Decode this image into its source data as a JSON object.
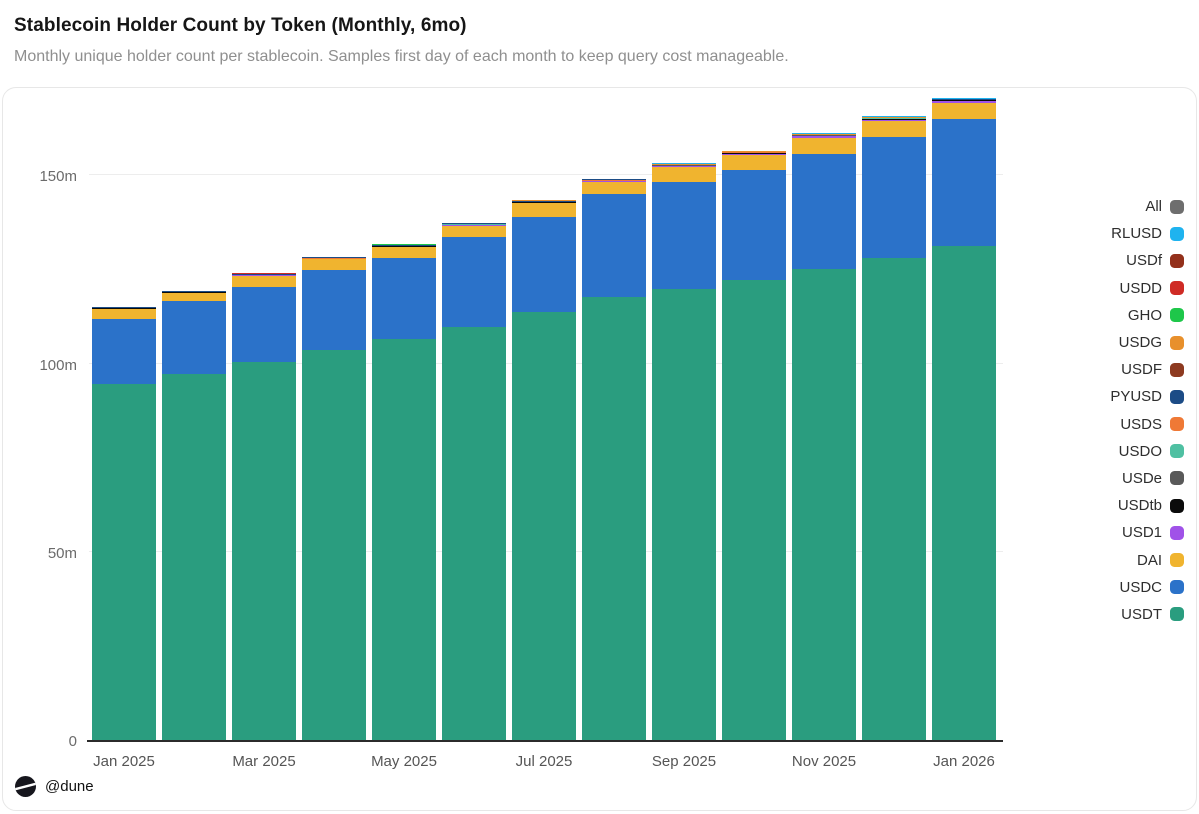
{
  "header": {
    "title": "Stablecoin Holder Count by Token (Monthly, 6mo)",
    "subtitle": "Monthly unique holder count per stablecoin. Samples first day of each month to keep query cost manageable."
  },
  "footer": {
    "watermark": "@dune"
  },
  "colors": {
    "card_border": "#e7e7e7",
    "grid": "#ededed",
    "axis": "#2b2b2b",
    "y_tick_label": "#6b6b6b",
    "x_tick_label": "#555555",
    "title": "#161616",
    "subtitle": "#8f8f8f"
  },
  "legend": {
    "position": "right",
    "items": [
      {
        "label": "All",
        "color": "#6e6e6e"
      },
      {
        "label": "RLUSD",
        "color": "#1fb3ef"
      },
      {
        "label": "USDf",
        "color": "#93301b"
      },
      {
        "label": "USDD",
        "color": "#cf2b25"
      },
      {
        "label": "GHO",
        "color": "#1ec74a"
      },
      {
        "label": "USDG",
        "color": "#e8902c"
      },
      {
        "label": "USDF",
        "color": "#8d3a20"
      },
      {
        "label": "PYUSD",
        "color": "#1c4c86"
      },
      {
        "label": "USDS",
        "color": "#ef7936"
      },
      {
        "label": "USDO",
        "color": "#4fc0a2"
      },
      {
        "label": "USDe",
        "color": "#595959"
      },
      {
        "label": "USDtb",
        "color": "#0b0b0b"
      },
      {
        "label": "USD1",
        "color": "#a052e8"
      },
      {
        "label": "DAI",
        "color": "#f0b42f"
      },
      {
        "label": "USDC",
        "color": "#2b72c9"
      },
      {
        "label": "USDT",
        "color": "#2a9d7f"
      }
    ]
  },
  "chart_data": {
    "type": "bar",
    "stacked": true,
    "title": "Stablecoin Holder Count by Token (Monthly, 6mo)",
    "unit": "millions of holders",
    "categories": [
      "Jan 2025",
      "Feb 2025",
      "Mar 2025",
      "Apr 2025",
      "May 2025",
      "Jun 2025",
      "Jul 2025",
      "Aug 2025",
      "Sep 2025",
      "Oct 2025",
      "Nov 2025",
      "Dec 2025",
      "Jan 2026"
    ],
    "x_axis_labels_shown": [
      "Jan 2025",
      "Mar 2025",
      "May 2025",
      "Jul 2025",
      "Sep 2025",
      "Nov 2025",
      "Jan 2026"
    ],
    "y_ticks": [
      {
        "value": 0,
        "label": "0"
      },
      {
        "value": 50,
        "label": "50m"
      },
      {
        "value": 100,
        "label": "100m"
      },
      {
        "value": 150,
        "label": "150m"
      }
    ],
    "ylim": [
      0,
      173.7
    ],
    "grid": true,
    "legend_position": "right",
    "series": [
      {
        "name": "USDT",
        "color": "#2a9d7f",
        "values": [
          94.5,
          97.3,
          100.3,
          103.7,
          106.4,
          109.6,
          113.8,
          117.7,
          119.7,
          122.3,
          125.2,
          127.9,
          131.2
        ]
      },
      {
        "name": "USDC",
        "color": "#2b72c9",
        "values": [
          17.2,
          19.4,
          20.1,
          21.2,
          21.5,
          24.1,
          25.0,
          27.2,
          28.4,
          29.2,
          30.5,
          32.2,
          33.7
        ]
      },
      {
        "name": "DAI",
        "color": "#f0b42f",
        "values": [
          2.9,
          2.2,
          3.0,
          2.8,
          3.1,
          2.9,
          3.7,
          3.2,
          4.0,
          3.9,
          4.2,
          4.2,
          4.2
        ]
      },
      {
        "name": "USD1",
        "color": "#a052e8",
        "values": [
          0.15,
          0.15,
          0.2,
          0.2,
          0.25,
          0.3,
          0.4,
          0.4,
          0.45,
          0.45,
          0.5,
          0.5,
          0.55
        ]
      },
      {
        "name": "USDtb",
        "color": "#0b0b0b",
        "values": [
          0.05,
          0.05,
          0.06,
          0.07,
          0.08,
          0.09,
          0.1,
          0.12,
          0.15,
          0.18,
          0.22,
          0.28,
          0.33
        ]
      },
      {
        "name": "USDe",
        "color": "#595959",
        "values": [
          0.08,
          0.09,
          0.1,
          0.1,
          0.11,
          0.12,
          0.13,
          0.14,
          0.15,
          0.16,
          0.17,
          0.19,
          0.21
        ]
      },
      {
        "name": "USDO",
        "color": "#4fc0a2",
        "values": [
          0.02,
          0.02,
          0.02,
          0.02,
          0.03,
          0.03,
          0.03,
          0.03,
          0.03,
          0.04,
          0.04,
          0.04,
          0.04
        ]
      },
      {
        "name": "USDS",
        "color": "#ef7936",
        "values": [
          0.04,
          0.04,
          0.05,
          0.05,
          0.05,
          0.06,
          0.06,
          0.06,
          0.07,
          0.07,
          0.07,
          0.08,
          0.08
        ]
      },
      {
        "name": "PYUSD",
        "color": "#1c4c86",
        "values": [
          0.03,
          0.03,
          0.03,
          0.04,
          0.04,
          0.04,
          0.05,
          0.05,
          0.05,
          0.05,
          0.06,
          0.06,
          0.06
        ]
      },
      {
        "name": "USDF",
        "color": "#8d3a20",
        "values": [
          0.01,
          0.01,
          0.01,
          0.02,
          0.02,
          0.02,
          0.02,
          0.02,
          0.03,
          0.03,
          0.03,
          0.03,
          0.03
        ]
      },
      {
        "name": "USDG",
        "color": "#e8902c",
        "values": [
          0.01,
          0.01,
          0.01,
          0.01,
          0.02,
          0.02,
          0.02,
          0.02,
          0.03,
          0.03,
          0.03,
          0.04,
          0.04
        ]
      },
      {
        "name": "GHO",
        "color": "#1ec74a",
        "values": [
          0.01,
          0.01,
          0.01,
          0.01,
          0.01,
          0.01,
          0.02,
          0.02,
          0.02,
          0.02,
          0.02,
          0.02,
          0.02
        ]
      },
      {
        "name": "USDD",
        "color": "#cf2b25",
        "values": [
          0.02,
          0.02,
          0.02,
          0.02,
          0.02,
          0.02,
          0.02,
          0.02,
          0.02,
          0.02,
          0.02,
          0.02,
          0.02
        ]
      },
      {
        "name": "USDf",
        "color": "#93301b",
        "values": [
          0.01,
          0.01,
          0.01,
          0.01,
          0.01,
          0.01,
          0.01,
          0.02,
          0.02,
          0.02,
          0.02,
          0.02,
          0.02
        ]
      },
      {
        "name": "RLUSD",
        "color": "#1fb3ef",
        "values": [
          0.01,
          0.01,
          0.01,
          0.01,
          0.01,
          0.02,
          0.02,
          0.02,
          0.02,
          0.02,
          0.03,
          0.03,
          0.03
        ]
      }
    ]
  }
}
